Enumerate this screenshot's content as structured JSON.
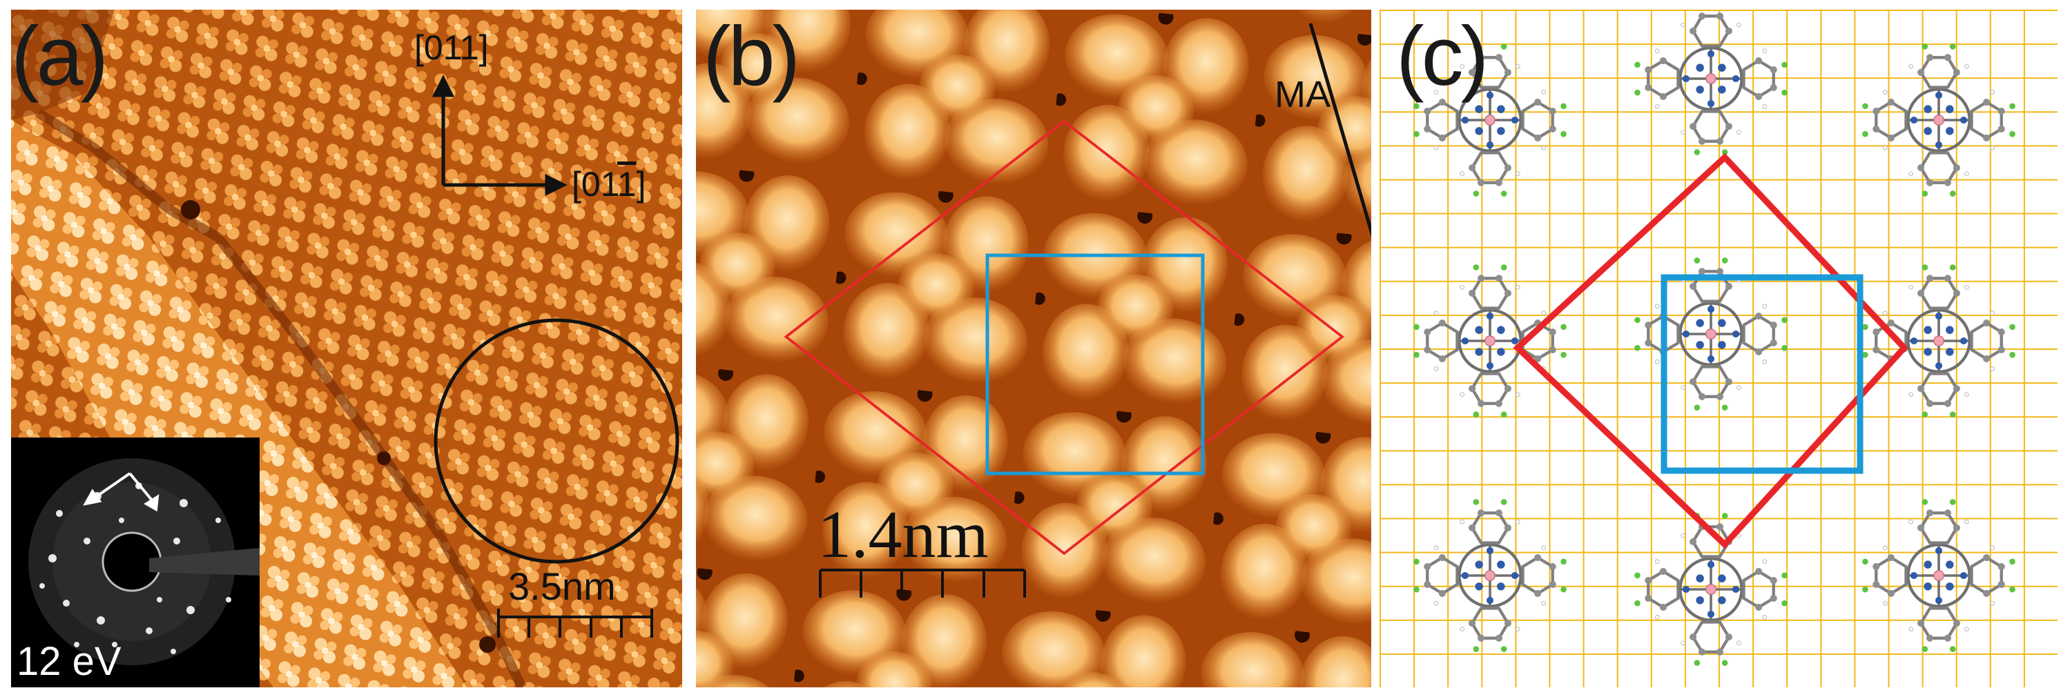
{
  "figure": {
    "panels": [
      {
        "id": "a",
        "label": "(a)"
      },
      {
        "id": "b",
        "label": "(b)"
      },
      {
        "id": "c",
        "label": "(c)"
      }
    ],
    "panel_a": {
      "direction_vertical": "[011]",
      "direction_horizontal_pre": "[01",
      "direction_horizontal_bar": "1",
      "direction_horizontal_post": "]",
      "scale_bar": "3.5nm",
      "leed_energy": "12 eV"
    },
    "panel_b": {
      "scale_bar": "1.4nm",
      "line_label": "MA"
    },
    "colors": {
      "stm_dark": "#7a2c05",
      "stm_mid": "#cc6d1c",
      "stm_bright": "#ffe7b3",
      "unit_cell_red": "#e8262a",
      "unit_cell_blue": "#1a9ad6",
      "grid_yellow": "#f2b817",
      "carbon": "#8e8e8e",
      "nitrogen": "#2f5ba8",
      "fluorine": "#5cc43e",
      "hydrogen": "#ffffff",
      "metal": "#f2a3b0"
    }
  }
}
